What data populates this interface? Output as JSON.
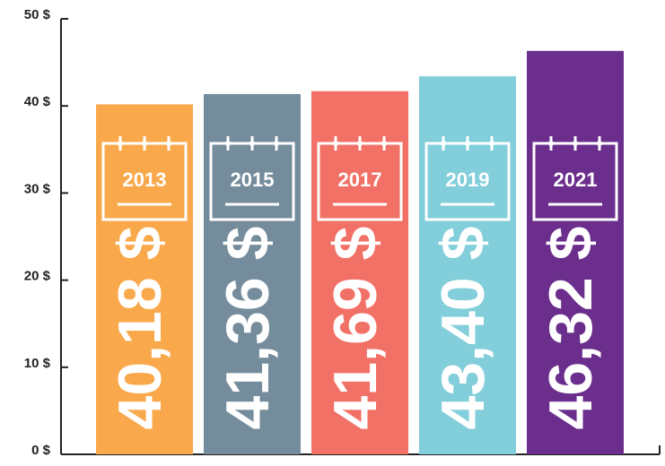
{
  "chart_data": {
    "type": "bar",
    "categories": [
      "2013",
      "2015",
      "2017",
      "2019",
      "2021"
    ],
    "values": [
      40.18,
      41.36,
      41.69,
      43.4,
      46.32
    ],
    "value_labels": [
      "40,18 $",
      "41,36 $",
      "41,69 $",
      "43,40 $",
      "46,32 $"
    ],
    "colors": [
      "#f9a94b",
      "#748c9c",
      "#f27166",
      "#82ceda",
      "#6b2e8c"
    ],
    "ylim": [
      0,
      50
    ],
    "yticks": [
      {
        "value": 0,
        "label": "0 $"
      },
      {
        "value": 10,
        "label": "10 $"
      },
      {
        "value": 20,
        "label": "20 $"
      },
      {
        "value": 30,
        "label": "30 $"
      },
      {
        "value": 40,
        "label": "40 $"
      },
      {
        "value": 50,
        "label": "50 $"
      }
    ]
  }
}
